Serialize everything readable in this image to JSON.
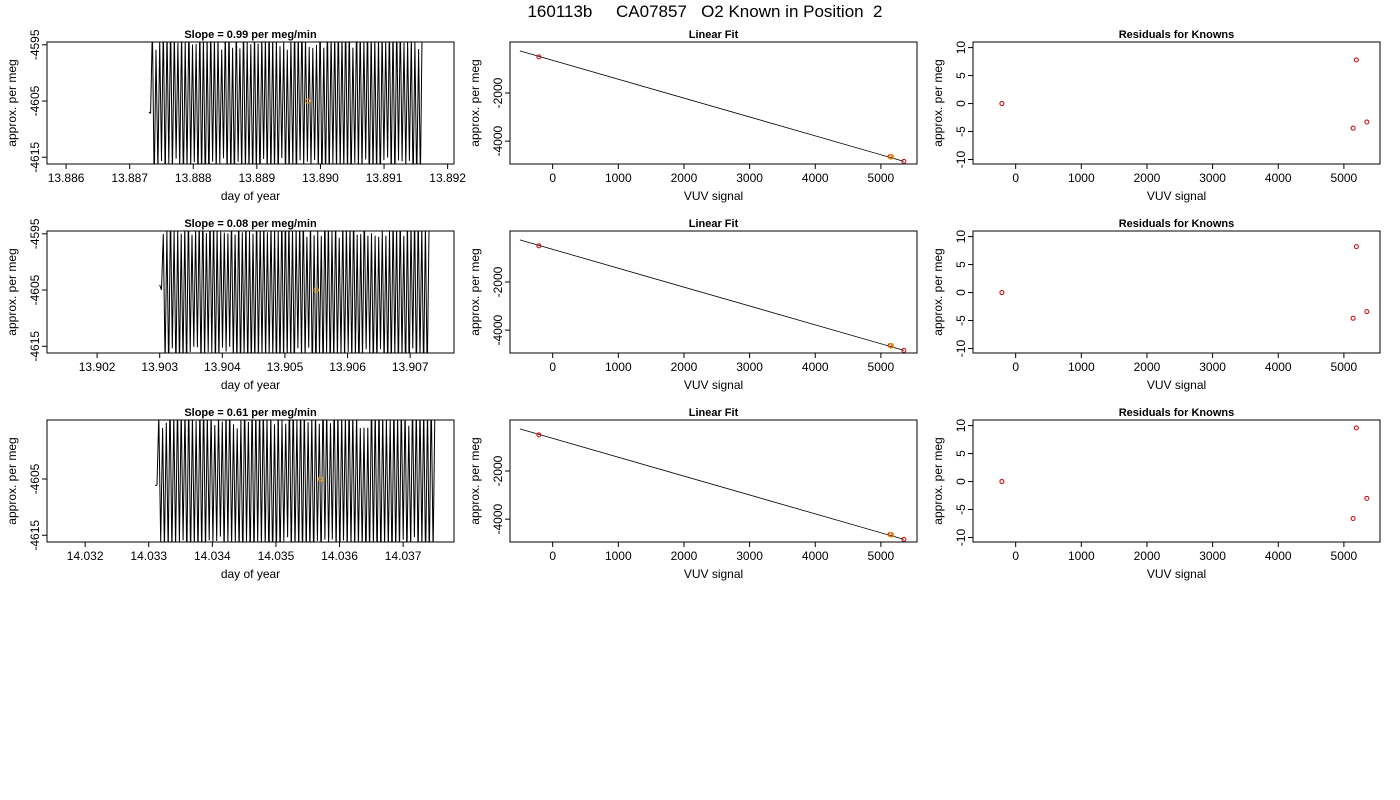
{
  "title": "160113b     CA07857   O2 Known in Position  2",
  "colors": {
    "trace": "#000000",
    "known_marker": "#cc0000",
    "highlight_marker": "#e6a000",
    "axes": "#000000"
  },
  "chart_data": [
    {
      "type": "line",
      "title": "Slope =  0.99  per meg/min",
      "xlabel": "day of year",
      "ylabel": "approx. per meg",
      "xlim": [
        13.8857,
        13.8921
      ],
      "ylim": [
        -4616.2,
        -4594.5
      ],
      "xticks": [
        "13.886",
        "13.887",
        "13.888",
        "13.889",
        "13.890",
        "13.891",
        "13.892"
      ],
      "yticks": [
        "-4595",
        "-4605",
        "-4615"
      ],
      "ytick_values": [
        -4595,
        -4605,
        -4615
      ],
      "trace_x_range": [
        13.8873,
        13.8916
      ],
      "trace_y_range": [
        -4616,
        -4595
      ],
      "highlight_point": {
        "x": 13.8898,
        "y": -4605
      },
      "grid": false
    },
    {
      "type": "scatter",
      "title": "Linear Fit",
      "xlabel": "VUV signal",
      "ylabel": "approx. per meg",
      "xlim": [
        -650,
        5550
      ],
      "ylim": [
        -4950,
        120
      ],
      "xticks": [
        "0",
        "1000",
        "2000",
        "3000",
        "4000",
        "5000"
      ],
      "yticks": [
        "-2000",
        "-4000"
      ],
      "ytick_values": [
        -2000,
        -4000
      ],
      "known_points": [
        {
          "x": -210,
          "y": -500
        },
        {
          "x": 5140,
          "y": -4640
        },
        {
          "x": 5350,
          "y": -4840
        }
      ],
      "highlight_point": {
        "x": 5160,
        "y": -4650
      },
      "fit_line": [
        {
          "x": -500,
          "y": -250
        },
        {
          "x": 5350,
          "y": -4840
        }
      ],
      "grid": false
    },
    {
      "type": "scatter",
      "title": "Residuals for Knowns",
      "xlabel": "VUV signal",
      "ylabel": "approx. per meg",
      "xlim": [
        -650,
        5550
      ],
      "ylim": [
        -10.8,
        11
      ],
      "xticks": [
        "0",
        "1000",
        "2000",
        "3000",
        "4000",
        "5000"
      ],
      "yticks": [
        "10",
        "5",
        "0",
        "-5",
        "-10"
      ],
      "ytick_values": [
        10,
        5,
        0,
        -5,
        -10
      ],
      "points": [
        {
          "x": -210,
          "y": 0
        },
        {
          "x": 5190,
          "y": 7.8
        },
        {
          "x": 5140,
          "y": -4.4
        },
        {
          "x": 5350,
          "y": -3.3
        }
      ],
      "grid": false
    },
    {
      "type": "line",
      "title": "Slope =  0.08  per meg/min",
      "xlabel": "day of year",
      "ylabel": "approx. per meg",
      "xlim": [
        13.9012,
        13.9077
      ],
      "ylim": [
        -4616.2,
        -4594.5
      ],
      "xticks": [
        "13.902",
        "13.903",
        "13.904",
        "13.905",
        "13.906",
        "13.907"
      ],
      "yticks": [
        "-4595",
        "-4605",
        "-4615"
      ],
      "ytick_values": [
        -4595,
        -4605,
        -4615
      ],
      "trace_x_range": [
        13.903,
        13.9073
      ],
      "trace_y_range": [
        -4616,
        -4595
      ],
      "highlight_point": {
        "x": 13.9055,
        "y": -4605
      },
      "grid": false
    },
    {
      "type": "scatter",
      "title": "Linear Fit",
      "xlabel": "VUV signal",
      "ylabel": "approx. per meg",
      "xlim": [
        -650,
        5550
      ],
      "ylim": [
        -4950,
        120
      ],
      "xticks": [
        "0",
        "1000",
        "2000",
        "3000",
        "4000",
        "5000"
      ],
      "yticks": [
        "-2000",
        "-4000"
      ],
      "ytick_values": [
        -2000,
        -4000
      ],
      "known_points": [
        {
          "x": -210,
          "y": -500
        },
        {
          "x": 5140,
          "y": -4640
        },
        {
          "x": 5350,
          "y": -4840
        }
      ],
      "highlight_point": {
        "x": 5160,
        "y": -4650
      },
      "fit_line": [
        {
          "x": -500,
          "y": -250
        },
        {
          "x": 5350,
          "y": -4840
        }
      ],
      "grid": false
    },
    {
      "type": "scatter",
      "title": "Residuals for Knowns",
      "xlabel": "VUV signal",
      "ylabel": "approx. per meg",
      "xlim": [
        -650,
        5550
      ],
      "ylim": [
        -10.8,
        11
      ],
      "xticks": [
        "0",
        "1000",
        "2000",
        "3000",
        "4000",
        "5000"
      ],
      "yticks": [
        "10",
        "5",
        "0",
        "-5",
        "-10"
      ],
      "ytick_values": [
        10,
        5,
        0,
        -5,
        -10
      ],
      "points": [
        {
          "x": -210,
          "y": 0
        },
        {
          "x": 5190,
          "y": 8.2
        },
        {
          "x": 5140,
          "y": -4.6
        },
        {
          "x": 5350,
          "y": -3.4
        }
      ],
      "grid": false
    },
    {
      "type": "line",
      "title": "Slope =  0.61  per meg/min",
      "xlabel": "day of year",
      "ylabel": "approx. per meg",
      "xlim": [
        14.0314,
        14.0378
      ],
      "ylim": [
        -4616.2,
        -4594.5
      ],
      "xticks": [
        "14.032",
        "14.033",
        "14.034",
        "14.035",
        "14.036",
        "14.037"
      ],
      "yticks": [
        "-4605",
        "-4615"
      ],
      "ytick_values": [
        -4605,
        -4615
      ],
      "trace_x_range": [
        14.0331,
        14.0375
      ],
      "trace_y_range": [
        -4616,
        -4595
      ],
      "highlight_point": {
        "x": 14.0357,
        "y": -4605
      },
      "grid": false
    },
    {
      "type": "scatter",
      "title": "Linear Fit",
      "xlabel": "VUV signal",
      "ylabel": "approx. per meg",
      "xlim": [
        -650,
        5550
      ],
      "ylim": [
        -4950,
        120
      ],
      "xticks": [
        "0",
        "1000",
        "2000",
        "3000",
        "4000",
        "5000"
      ],
      "yticks": [
        "-2000",
        "-4000"
      ],
      "ytick_values": [
        -2000,
        -4000
      ],
      "known_points": [
        {
          "x": -210,
          "y": -500
        },
        {
          "x": 5140,
          "y": -4640
        },
        {
          "x": 5350,
          "y": -4840
        }
      ],
      "highlight_point": {
        "x": 5160,
        "y": -4650
      },
      "fit_line": [
        {
          "x": -500,
          "y": -250
        },
        {
          "x": 5350,
          "y": -4840
        }
      ],
      "grid": false
    },
    {
      "type": "scatter",
      "title": "Residuals for Knowns",
      "xlabel": "VUV signal",
      "ylabel": "approx. per meg",
      "xlim": [
        -650,
        5550
      ],
      "ylim": [
        -10.8,
        11
      ],
      "xticks": [
        "0",
        "1000",
        "2000",
        "3000",
        "4000",
        "5000"
      ],
      "yticks": [
        "10",
        "5",
        "0",
        "-5",
        "-10"
      ],
      "ytick_values": [
        10,
        5,
        0,
        -5,
        -10
      ],
      "points": [
        {
          "x": -210,
          "y": 0
        },
        {
          "x": 5190,
          "y": 9.6
        },
        {
          "x": 5140,
          "y": -6.6
        },
        {
          "x": 5350,
          "y": -3.0
        }
      ],
      "grid": false
    }
  ]
}
